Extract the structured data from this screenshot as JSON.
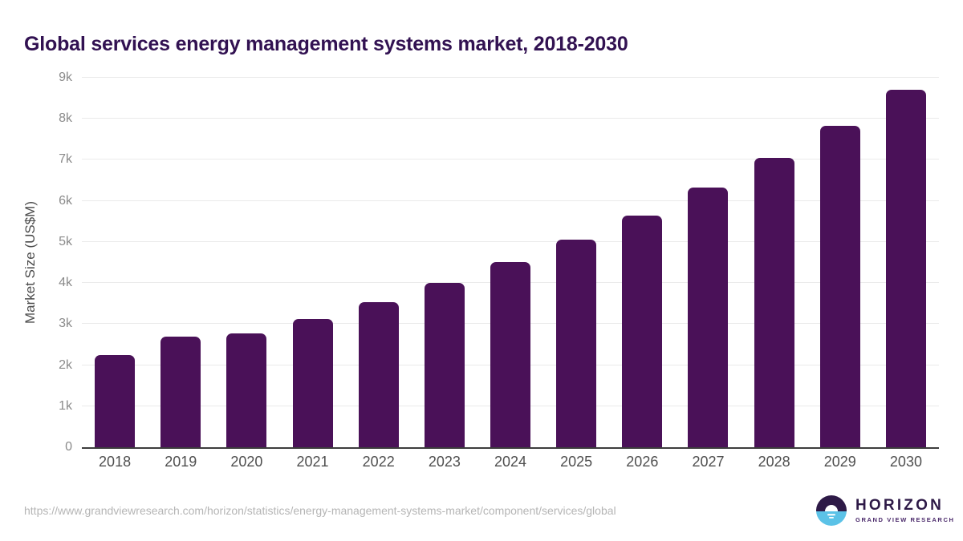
{
  "title": "Global services energy management systems market, 2018-2030",
  "chart_data": {
    "type": "bar",
    "title": "Global services energy management systems market, 2018-2030",
    "categories": [
      "2018",
      "2019",
      "2020",
      "2021",
      "2022",
      "2023",
      "2024",
      "2025",
      "2026",
      "2027",
      "2028",
      "2029",
      "2030"
    ],
    "values": [
      2240,
      2700,
      2780,
      3130,
      3530,
      4000,
      4510,
      5060,
      5650,
      6320,
      7040,
      7820,
      8700
    ],
    "xlabel": "",
    "ylabel": "Market Size (US$M)",
    "ylim": [
      0,
      9000
    ],
    "yticks": [
      {
        "label": "0",
        "value": 0
      },
      {
        "label": "1k",
        "value": 1000
      },
      {
        "label": "2k",
        "value": 2000
      },
      {
        "label": "3k",
        "value": 3000
      },
      {
        "label": "4k",
        "value": 4000
      },
      {
        "label": "5k",
        "value": 5000
      },
      {
        "label": "6k",
        "value": 6000
      },
      {
        "label": "7k",
        "value": 7000
      },
      {
        "label": "8k",
        "value": 8000
      },
      {
        "label": "9k",
        "value": 9000
      }
    ],
    "grid": "horizontal",
    "legend": "none",
    "bar_color": "#4a1158"
  },
  "colors": {
    "title": "#321252",
    "bar": "#4a1158",
    "gridline": "#eaeaea",
    "axis_line": "#3d3d3d",
    "tick_label": "#8a8a8a",
    "category_label": "#4f4f4f",
    "url_text": "#b5b5b5",
    "logo_purple": "#2e1a47",
    "logo_blue": "#5bc2e7"
  },
  "footer": {
    "source_url": "https://www.grandviewresearch.com/horizon/statistics/energy-management-systems-market/component/services/global",
    "logo": {
      "brand": "HORIZON",
      "tagline": "GRAND VIEW RESEARCH"
    }
  }
}
